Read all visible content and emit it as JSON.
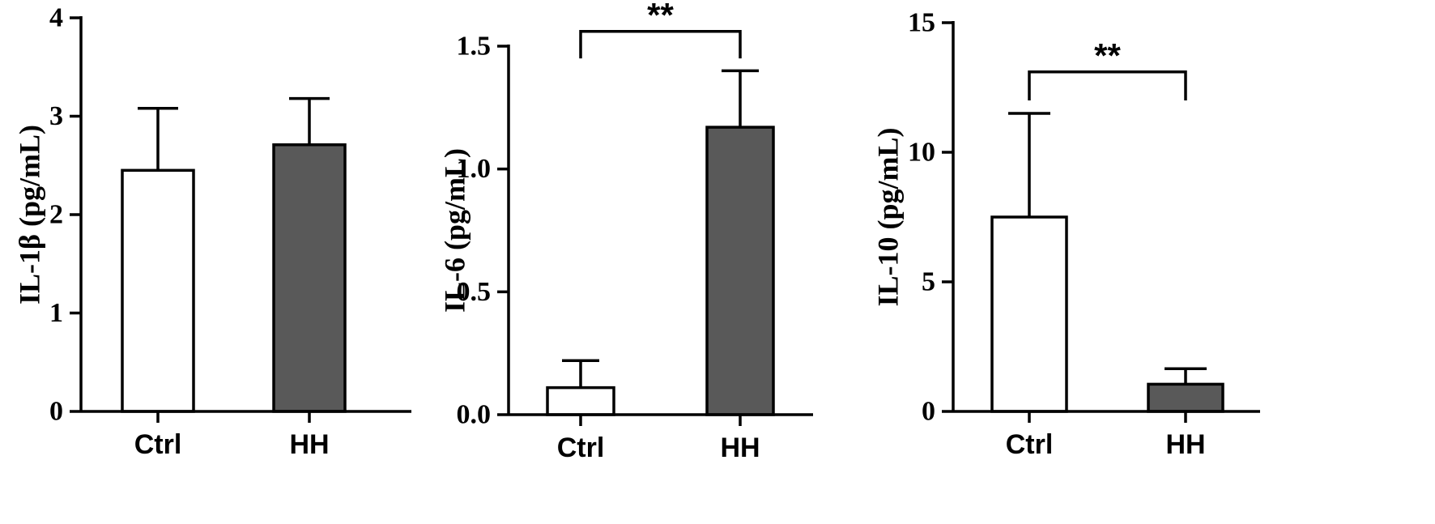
{
  "chart_data": [
    {
      "type": "bar",
      "categories": [
        "Ctrl",
        "HH"
      ],
      "values": [
        2.45,
        2.71
      ],
      "error_upper": [
        3.08,
        3.18
      ],
      "bar_colors": [
        "#ffffff",
        "#595959"
      ],
      "ylabel": "IL-1β (pg/mL)",
      "ylim": [
        0,
        4
      ],
      "yticks": [
        0,
        1,
        2,
        3,
        4
      ],
      "ytick_labels": [
        "0",
        "1",
        "2",
        "3",
        "4"
      ],
      "significance": null
    },
    {
      "type": "bar",
      "categories": [
        "Ctrl",
        "HH"
      ],
      "values": [
        0.11,
        1.17
      ],
      "error_upper": [
        0.22,
        1.4
      ],
      "bar_colors": [
        "#ffffff",
        "#595959"
      ],
      "ylabel": "IL-6 (pg/mL)",
      "ylim": [
        0,
        1.5
      ],
      "yticks": [
        0,
        0.5,
        1.0,
        1.5
      ],
      "ytick_labels": [
        "0.0",
        "0.5",
        "1.0",
        "1.5"
      ],
      "significance": {
        "label": "**",
        "bracket_y": 1.56,
        "leg_y": 1.45
      }
    },
    {
      "type": "bar",
      "categories": [
        "Ctrl",
        "HH"
      ],
      "values": [
        7.5,
        1.05
      ],
      "error_upper": [
        11.5,
        1.65
      ],
      "bar_colors": [
        "#ffffff",
        "#595959"
      ],
      "ylabel": "IL-10 (pg/mL)",
      "ylim": [
        0,
        15
      ],
      "yticks": [
        0,
        5,
        10,
        15
      ],
      "ytick_labels": [
        "0",
        "5",
        "10",
        "15"
      ],
      "significance": {
        "label": "**",
        "bracket_y": 13.1,
        "leg_y": 12.0
      }
    }
  ]
}
